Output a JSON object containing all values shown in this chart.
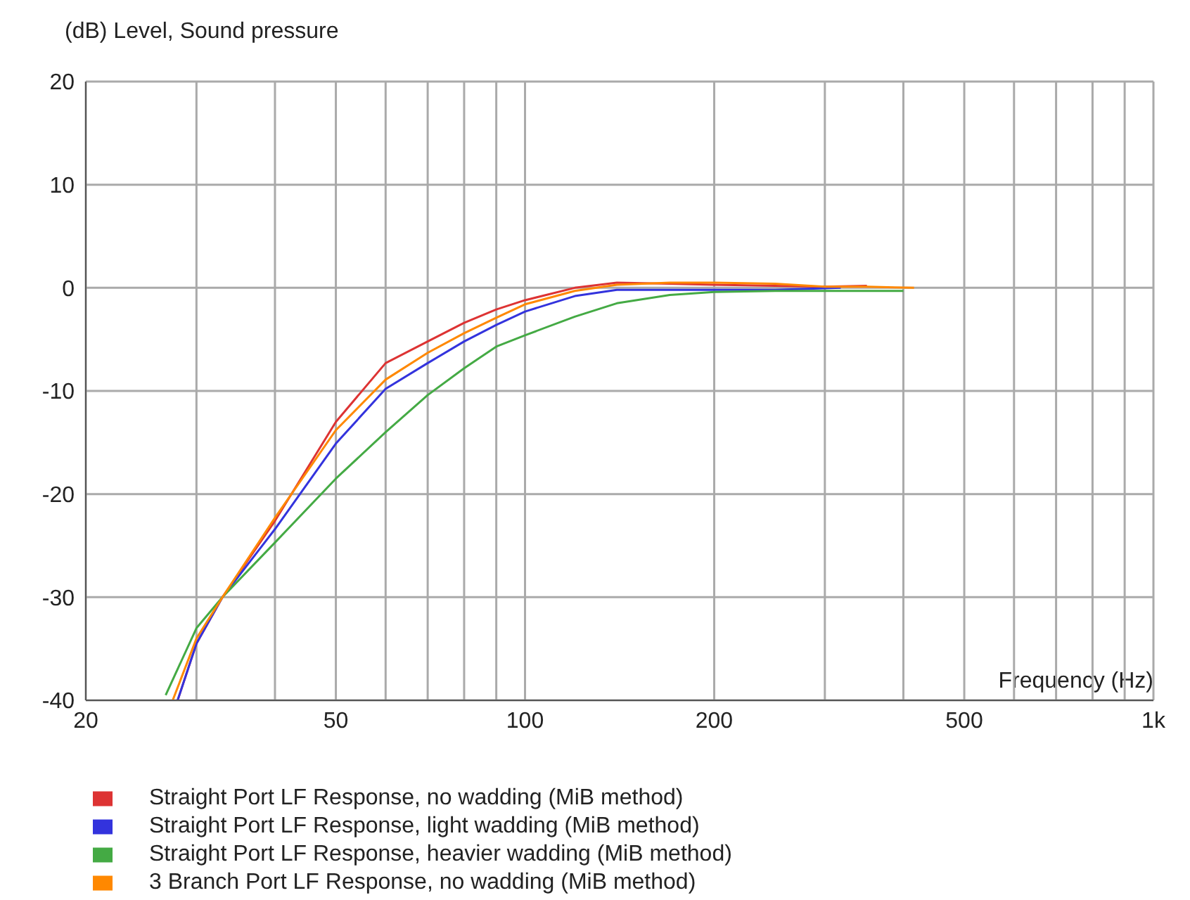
{
  "chart_data": {
    "type": "line",
    "ylabel": "(dB)  Level, Sound pressure",
    "xlabel": "Frequency  (Hz)",
    "log": "x",
    "xlim": [
      20,
      1000
    ],
    "ylim": [
      -40,
      20
    ],
    "yticks": [
      -40,
      -30,
      -20,
      -10,
      0,
      10,
      20
    ],
    "xticks": [
      20,
      {
        "value": 30,
        "label": null
      },
      {
        "value": 40,
        "label": null
      },
      50,
      {
        "value": 60,
        "label": null
      },
      {
        "value": 70,
        "label": null
      },
      {
        "value": 80,
        "label": null
      },
      {
        "value": 90,
        "label": null
      },
      100,
      200,
      {
        "value": 300,
        "label": null
      },
      {
        "value": 400,
        "label": null
      },
      500,
      {
        "value": 600,
        "label": null
      },
      {
        "value": 700,
        "label": null
      },
      {
        "value": 800,
        "label": null
      },
      {
        "value": 900,
        "label": null
      },
      {
        "value": 1000,
        "label": "1k"
      }
    ],
    "grid": true,
    "legend": "bottom",
    "marker": "none",
    "line_style": "solid",
    "series": [
      {
        "name": "Straight Port LF Response, no wadding (MiB method)",
        "color": "#dd3333",
        "x": [
          28,
          30,
          33,
          40,
          50,
          60,
          70,
          80,
          90,
          100,
          120,
          140,
          170,
          200,
          250,
          300,
          350
        ],
        "values": [
          -40,
          -34.5,
          -30,
          -22.6,
          -13,
          -7.3,
          -5.2,
          -3.4,
          -2.1,
          -1.2,
          0,
          0.5,
          0.4,
          0.3,
          0.2,
          0.1,
          0.2
        ]
      },
      {
        "name": "Straight Port LF Response, light wadding (MiB method)",
        "color": "#3333dd",
        "x": [
          28,
          30,
          33,
          40,
          50,
          60,
          70,
          80,
          90,
          100,
          120,
          140,
          170,
          200,
          250,
          318
        ],
        "values": [
          -40,
          -34.5,
          -30,
          -23.4,
          -15.1,
          -9.8,
          -7.3,
          -5.2,
          -3.6,
          -2.3,
          -0.8,
          -0.2,
          -0.2,
          -0.2,
          -0.2,
          0
        ]
      },
      {
        "name": "Straight Port LF Response, heavier wadding (MiB method)",
        "color": "#44aa44",
        "x": [
          26.8,
          30,
          33,
          40,
          50,
          60,
          70,
          80,
          90,
          100,
          120,
          140,
          170,
          200,
          250,
          300,
          350,
          400
        ],
        "values": [
          -39.5,
          -33,
          -30,
          -24.7,
          -18.5,
          -14,
          -10.4,
          -7.8,
          -5.7,
          -4.6,
          -2.8,
          -1.5,
          -0.7,
          -0.4,
          -0.3,
          -0.3,
          -0.3,
          -0.3
        ]
      },
      {
        "name": "3 Branch Port LF Response, no wadding (MiB method)",
        "color": "#ff8800",
        "x": [
          27.5,
          30,
          33,
          40,
          50,
          60,
          70,
          80,
          90,
          100,
          120,
          140,
          170,
          200,
          250,
          300,
          350,
          416
        ],
        "values": [
          -40,
          -34,
          -30,
          -22.3,
          -13.8,
          -8.9,
          -6.3,
          -4.4,
          -2.9,
          -1.6,
          -0.3,
          0.3,
          0.5,
          0.5,
          0.4,
          0.1,
          0.1,
          0
        ]
      }
    ]
  }
}
